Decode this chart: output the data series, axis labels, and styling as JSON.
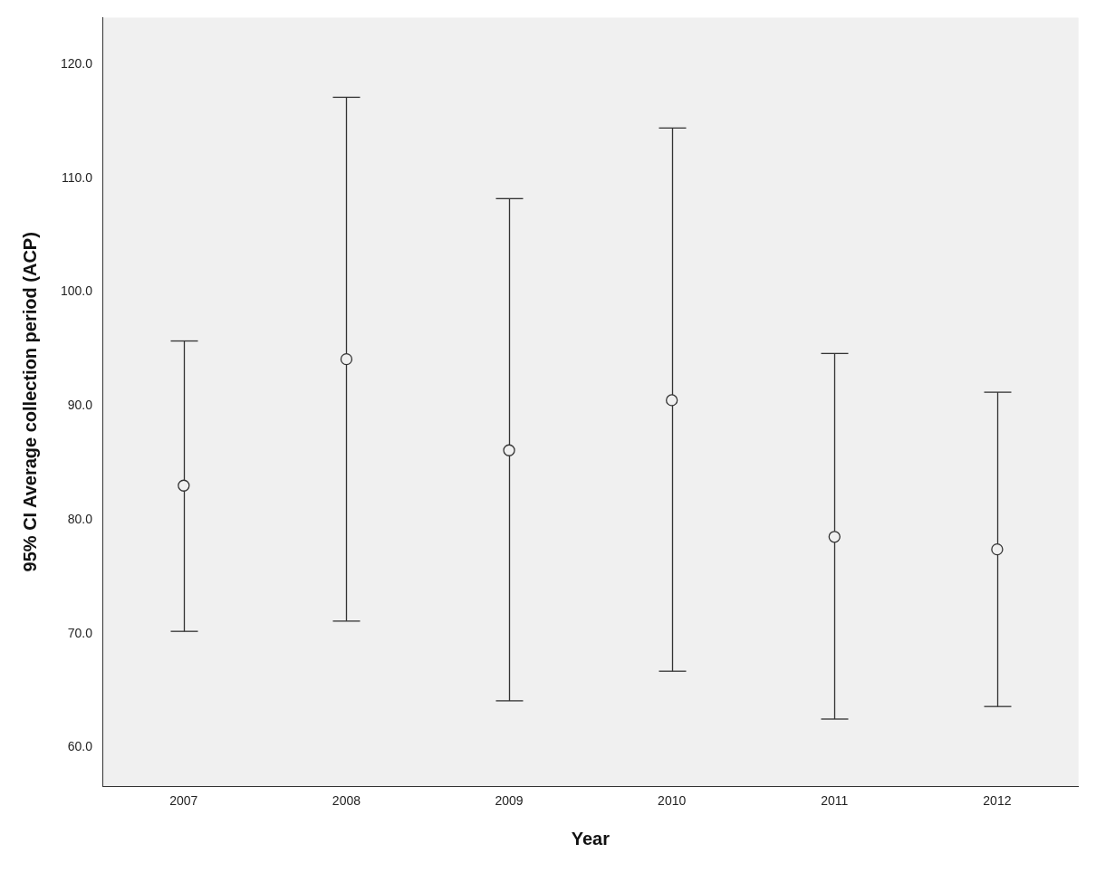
{
  "chart_data": {
    "type": "scatter",
    "xlabel": "Year",
    "ylabel": "95% CI Average collection period (ACP)",
    "categories": [
      "2007",
      "2008",
      "2009",
      "2010",
      "2011",
      "2012"
    ],
    "values": [
      83.0,
      94.1,
      86.1,
      90.5,
      78.5,
      77.4
    ],
    "errors": [
      [
        70.2,
        95.7
      ],
      [
        71.1,
        117.1
      ],
      [
        64.1,
        108.2
      ],
      [
        66.7,
        114.4
      ],
      [
        62.5,
        94.6
      ],
      [
        63.6,
        91.2
      ]
    ],
    "color": "#333333",
    "marker": "circle",
    "grid": false,
    "legend": false,
    "ylim": [
      56.6,
      124.1
    ],
    "yticks": [
      {
        "value": 60,
        "label": "60.0"
      },
      {
        "value": 70,
        "label": "70.0"
      },
      {
        "value": 80,
        "label": "80.0"
      },
      {
        "value": 90,
        "label": "90.0"
      },
      {
        "value": 100,
        "label": "100.0"
      },
      {
        "value": 110,
        "label": "110.0"
      },
      {
        "value": 120,
        "label": "120.0"
      }
    ]
  }
}
